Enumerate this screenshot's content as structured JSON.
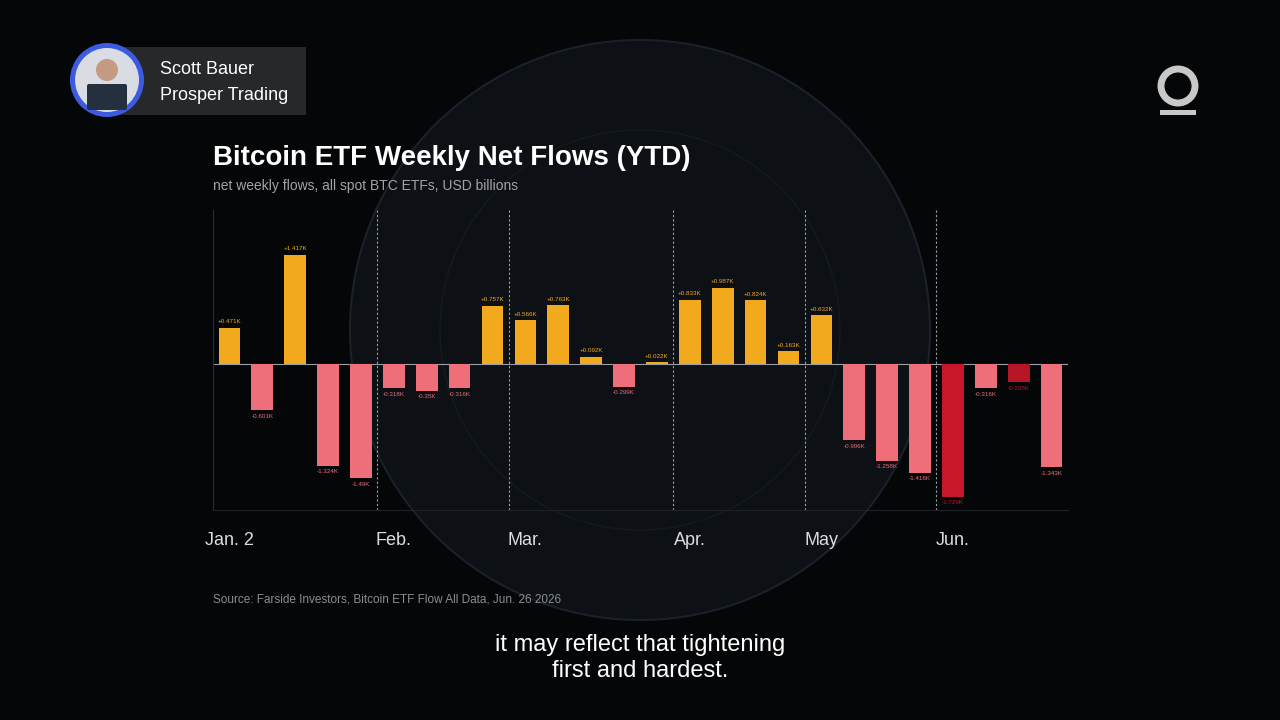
{
  "speaker": {
    "name": "Scott Bauer",
    "affiliation": "Prosper Trading"
  },
  "caption": "it may reflect that tightening\nfirst and hardest.",
  "chart_data": {
    "type": "bar",
    "title": "Bitcoin ETF Weekly Net Flows (YTD)",
    "subtitle": "net weekly flows, all spot BTC ETFs, USD billions",
    "source": "Source: Farside Investors, Bitcoin ETF Flow All Data, Jun. 26 2026",
    "categories": [
      "Jan. 2",
      null,
      null,
      null,
      null,
      "Feb.",
      null,
      null,
      null,
      "Mar.",
      null,
      null,
      null,
      null,
      "Apr.",
      null,
      null,
      null,
      "May",
      null,
      null,
      null,
      "Jun.",
      null,
      null,
      null
    ],
    "values": [
      0.471,
      -0.601,
      1.417,
      -1.324,
      -1.49,
      -0.318,
      -0.35,
      -0.316,
      0.757,
      0.566,
      0.763,
      0.092,
      -0.299,
      0.022,
      0.833,
      0.987,
      0.824,
      0.163,
      0.632,
      -0.996,
      -1.258,
      -1.416,
      -1.729,
      -0.316,
      -0.235,
      -1.343
    ],
    "value_labels": [
      "+0.471K",
      "-0.601K",
      "+1.417K",
      "-1.324K",
      "-1.49K",
      "-0.318K",
      "-0.35K",
      "-0.316K",
      "+0.757K",
      "+0.566K",
      "+0.763K",
      "+0.092K",
      "-0.299K",
      "+0.022K",
      "+0.833K",
      "+0.987K",
      "+0.824K",
      "+0.163K",
      "+0.632K",
      "-0.996K",
      "-1.258K",
      "-1.416K",
      "-1.729K",
      "-0.316K",
      "-0.235K",
      "-1.343K"
    ],
    "colors": [
      "#f2a91e",
      "#ee6f7a",
      "#f2a91e",
      "#ee6f7a",
      "#ee6f7a",
      "#ee6f7a",
      "#ee6f7a",
      "#ee6f7a",
      "#f2a91e",
      "#f2a91e",
      "#f2a91e",
      "#f2a91e",
      "#ee6f7a",
      "#f2a91e",
      "#f2a91e",
      "#f2a91e",
      "#f2a91e",
      "#f2a91e",
      "#f2a91e",
      "#ee6f7a",
      "#ee6f7a",
      "#ee6f7a",
      "#c8172b",
      "#ee6f7a",
      "#b51525",
      "#ee6f7a"
    ],
    "ylim": [
      -1.9,
      2.0
    ],
    "yticks": [
      0
    ],
    "grid": true,
    "data_labels": true,
    "tick_labels": "x"
  }
}
